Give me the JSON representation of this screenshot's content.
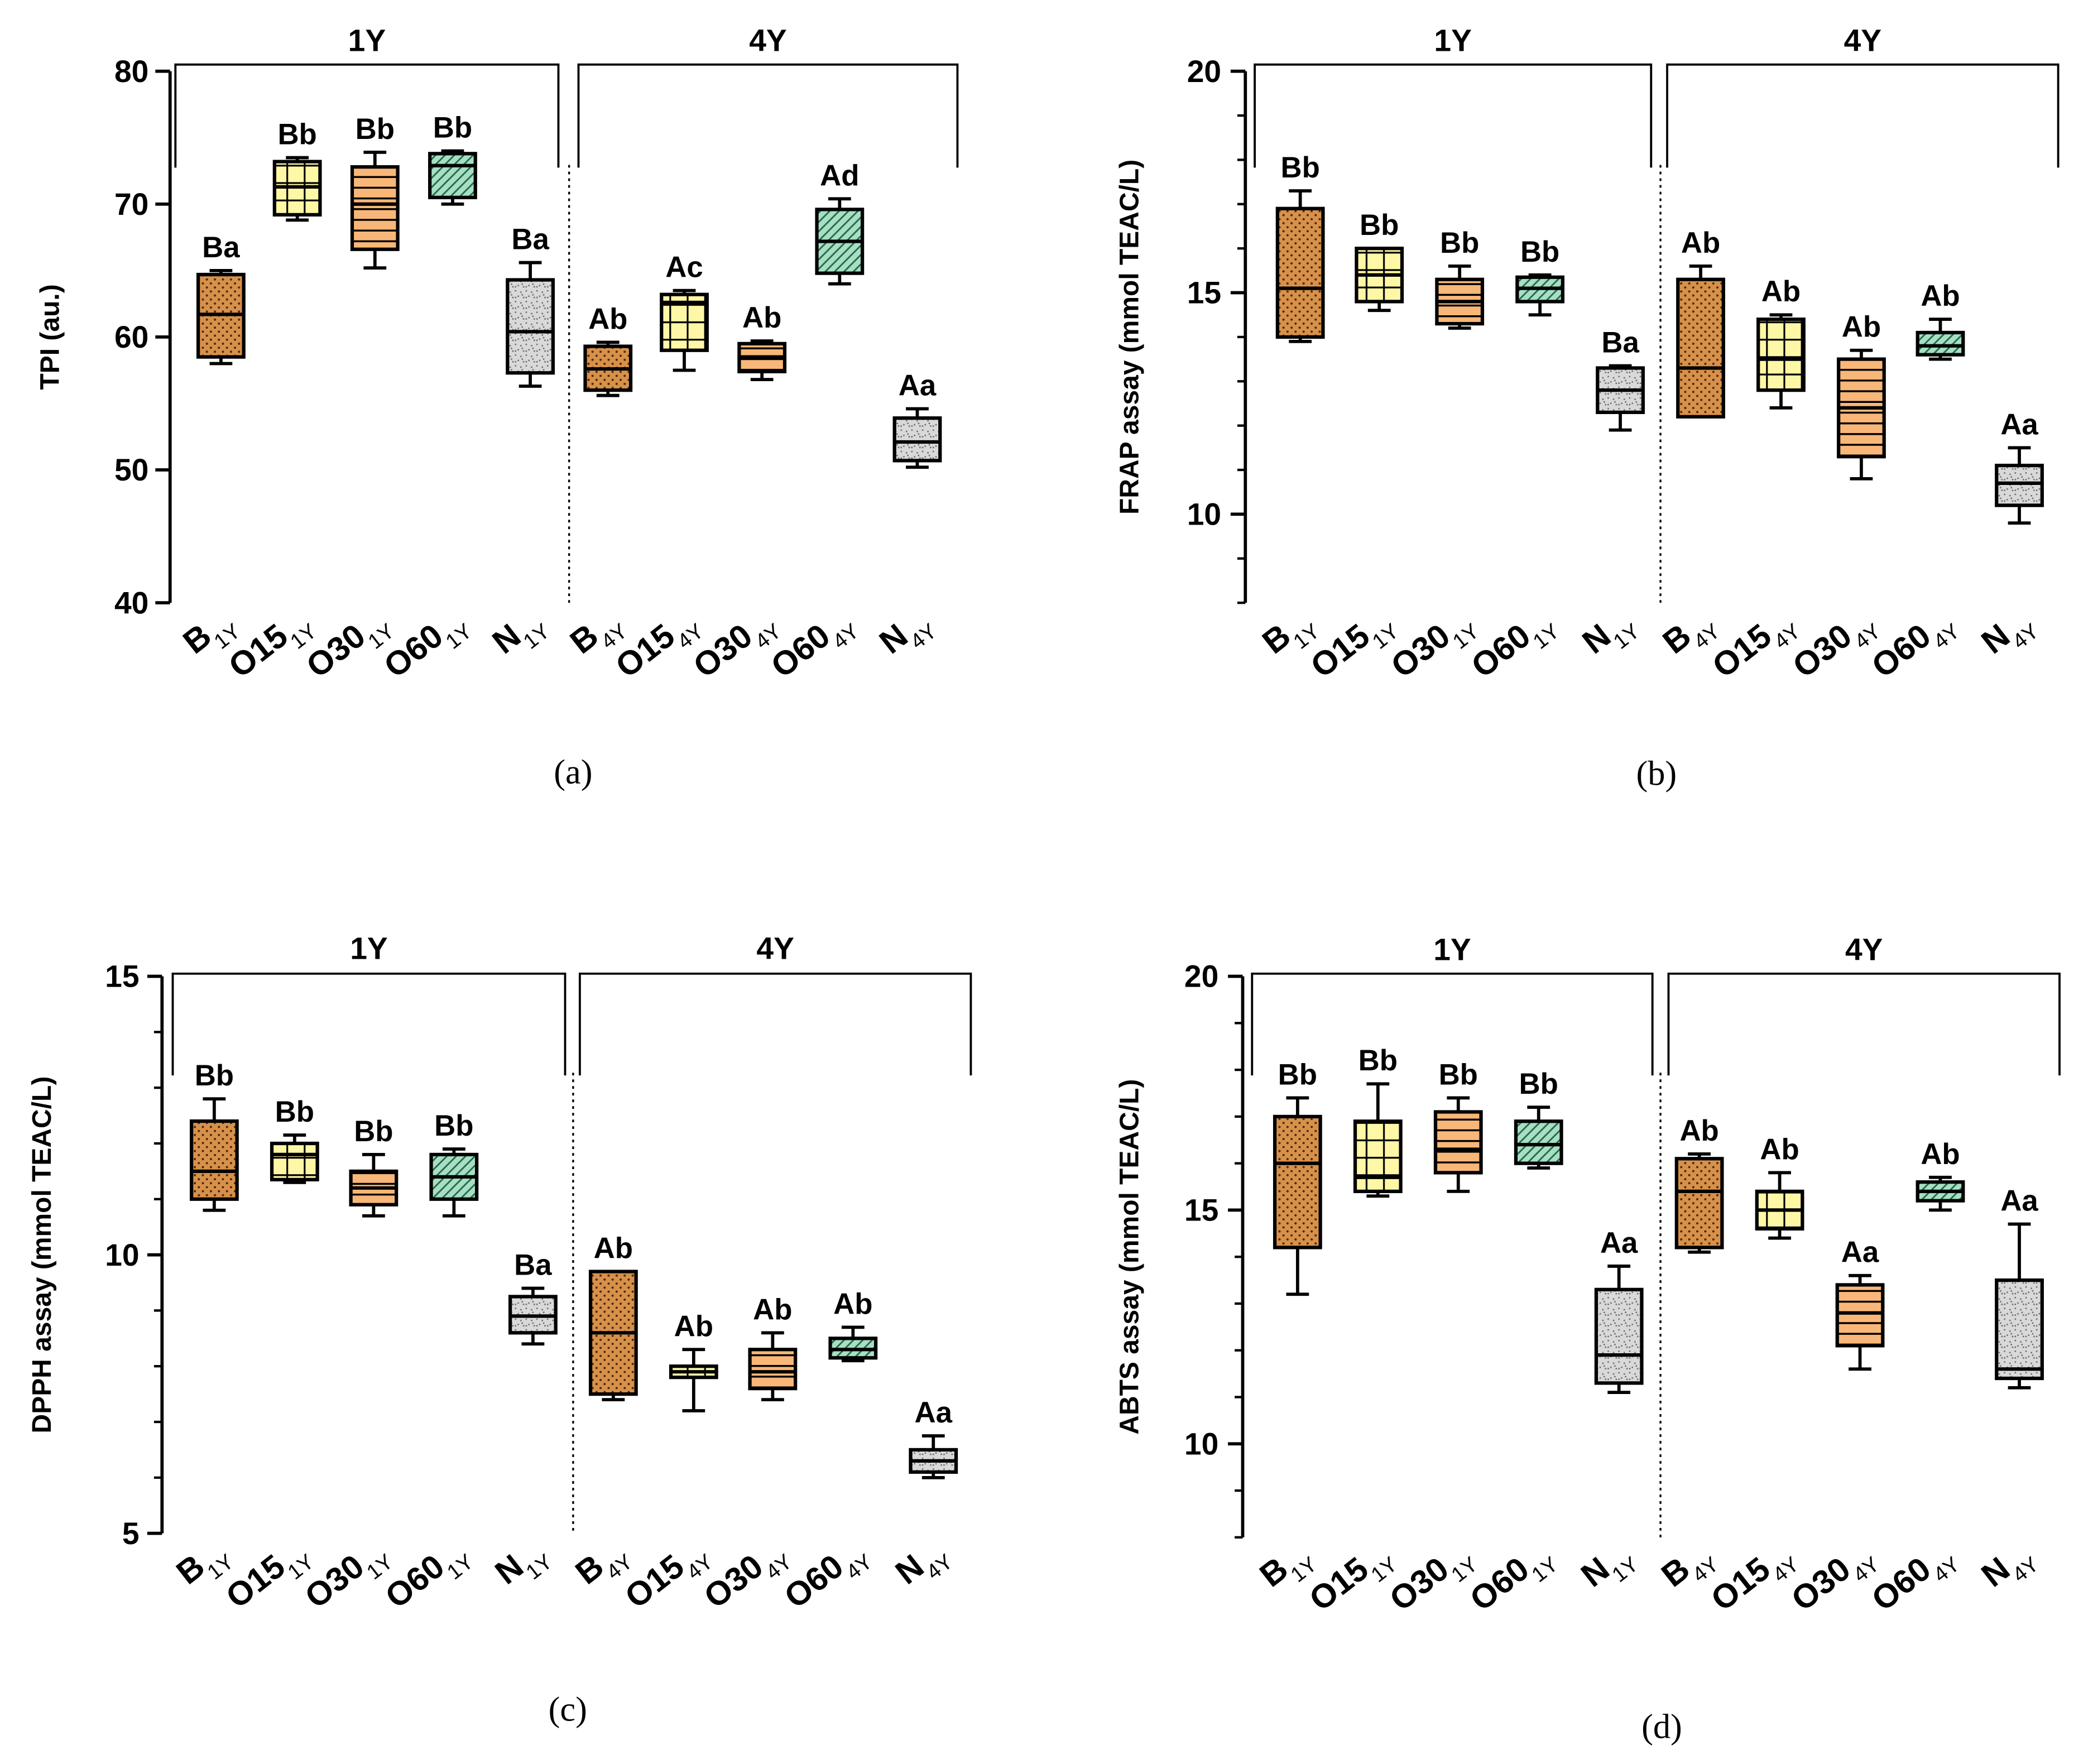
{
  "colors": {
    "B": "#d8914a",
    "O15": "#fdf7a6",
    "O30": "#f8b778",
    "O60": "#a9dec4",
    "N": "#d9d9d9"
  },
  "patterns": {
    "B": "dots",
    "O15": "cross",
    "O30": "hlines",
    "O60": "diag",
    "N": "speckle"
  },
  "chart_data": [
    {
      "type": "box",
      "panel": "(a)",
      "ylabel": "TPI (au.)",
      "ylim": [
        40,
        80
      ],
      "yticks": [
        40,
        50,
        60,
        70,
        80
      ],
      "minor_step": 0,
      "groups": [
        "1Y",
        "4Y"
      ],
      "categories": [
        {
          "base": "B",
          "sub": "1Y"
        },
        {
          "base": "O15",
          "sub": "1Y"
        },
        {
          "base": "O30",
          "sub": "1Y"
        },
        {
          "base": "O60",
          "sub": "1Y"
        },
        {
          "base": "N",
          "sub": "1Y"
        },
        {
          "base": "B",
          "sub": "4Y"
        },
        {
          "base": "O15",
          "sub": "4Y"
        },
        {
          "base": "O30",
          "sub": "4Y"
        },
        {
          "base": "O60",
          "sub": "4Y"
        },
        {
          "base": "N",
          "sub": "4Y"
        }
      ],
      "boxes": [
        {
          "min": 58.0,
          "q1": 58.5,
          "median": 61.7,
          "q3": 64.7,
          "max": 65.0,
          "label": "Ba"
        },
        {
          "min": 68.8,
          "q1": 69.2,
          "median": 71.3,
          "q3": 73.2,
          "max": 73.5,
          "label": "Bb"
        },
        {
          "min": 65.2,
          "q1": 66.6,
          "median": 70.0,
          "q3": 72.8,
          "max": 73.9,
          "label": "Bb"
        },
        {
          "min": 70.0,
          "q1": 70.5,
          "median": 72.9,
          "q3": 73.8,
          "max": 74.0,
          "label": "Bb"
        },
        {
          "min": 56.3,
          "q1": 57.3,
          "median": 60.4,
          "q3": 64.3,
          "max": 65.6,
          "label": "Ba"
        },
        {
          "min": 55.6,
          "q1": 56.0,
          "median": 57.6,
          "q3": 59.3,
          "max": 59.6,
          "label": "Ab"
        },
        {
          "min": 57.5,
          "q1": 59.0,
          "median": 62.6,
          "q3": 63.2,
          "max": 63.5,
          "label": "Ac"
        },
        {
          "min": 56.8,
          "q1": 57.4,
          "median": 58.5,
          "q3": 59.5,
          "max": 59.7,
          "label": "Ab"
        },
        {
          "min": 64.0,
          "q1": 64.8,
          "median": 67.2,
          "q3": 69.6,
          "max": 70.4,
          "label": "Ad"
        },
        {
          "min": 50.2,
          "q1": 50.7,
          "median": 52.1,
          "q3": 53.9,
          "max": 54.6,
          "label": "Aa"
        }
      ]
    },
    {
      "type": "box",
      "panel": "(b)",
      "ylabel": "FRAP assay (mmol TEAC/L)",
      "ylim": [
        8,
        20
      ],
      "yticks": [
        10,
        15,
        20
      ],
      "minor_step": 1,
      "groups": [
        "1Y",
        "4Y"
      ],
      "categories": [
        {
          "base": "B",
          "sub": "1Y"
        },
        {
          "base": "O15",
          "sub": "1Y"
        },
        {
          "base": "O30",
          "sub": "1Y"
        },
        {
          "base": "O60",
          "sub": "1Y"
        },
        {
          "base": "N",
          "sub": "1Y"
        },
        {
          "base": "B",
          "sub": "4Y"
        },
        {
          "base": "O15",
          "sub": "4Y"
        },
        {
          "base": "O30",
          "sub": "4Y"
        },
        {
          "base": "O60",
          "sub": "4Y"
        },
        {
          "base": "N",
          "sub": "4Y"
        }
      ],
      "boxes": [
        {
          "min": 13.9,
          "q1": 14.0,
          "median": 15.1,
          "q3": 16.9,
          "max": 17.3,
          "label": "Bb"
        },
        {
          "min": 14.6,
          "q1": 14.8,
          "median": 15.4,
          "q3": 16.0,
          "max": 16.0,
          "label": "Bb"
        },
        {
          "min": 14.2,
          "q1": 14.3,
          "median": 14.8,
          "q3": 15.3,
          "max": 15.6,
          "label": "Bb"
        },
        {
          "min": 14.5,
          "q1": 14.8,
          "median": 15.1,
          "q3": 15.35,
          "max": 15.4,
          "label": "Bb"
        },
        {
          "min": 11.9,
          "q1": 12.3,
          "median": 12.8,
          "q3": 13.3,
          "max": 13.35,
          "label": "Ba"
        },
        {
          "min": 12.2,
          "q1": 12.2,
          "median": 13.3,
          "q3": 15.3,
          "max": 15.6,
          "label": "Ab"
        },
        {
          "min": 12.4,
          "q1": 12.8,
          "median": 13.5,
          "q3": 14.4,
          "max": 14.5,
          "label": "Ab"
        },
        {
          "min": 10.8,
          "q1": 11.3,
          "median": 12.4,
          "q3": 13.5,
          "max": 13.7,
          "label": "Ab"
        },
        {
          "min": 13.5,
          "q1": 13.6,
          "median": 13.8,
          "q3": 14.1,
          "max": 14.4,
          "label": "Ab"
        },
        {
          "min": 9.8,
          "q1": 10.2,
          "median": 10.7,
          "q3": 11.1,
          "max": 11.5,
          "label": "Aa"
        }
      ]
    },
    {
      "type": "box",
      "panel": "(c)",
      "ylabel": "DPPH assay (mmol TEAC/L)",
      "ylim": [
        5,
        15
      ],
      "yticks": [
        5,
        10,
        15
      ],
      "minor_step": 1,
      "groups": [
        "1Y",
        "4Y"
      ],
      "categories": [
        {
          "base": "B",
          "sub": "1Y"
        },
        {
          "base": "O15",
          "sub": "1Y"
        },
        {
          "base": "O30",
          "sub": "1Y"
        },
        {
          "base": "O60",
          "sub": "1Y"
        },
        {
          "base": "N",
          "sub": "1Y"
        },
        {
          "base": "B",
          "sub": "4Y"
        },
        {
          "base": "O15",
          "sub": "4Y"
        },
        {
          "base": "O30",
          "sub": "4Y"
        },
        {
          "base": "O60",
          "sub": "4Y"
        },
        {
          "base": "N",
          "sub": "4Y"
        }
      ],
      "boxes": [
        {
          "min": 10.8,
          "q1": 11.0,
          "median": 11.5,
          "q3": 12.4,
          "max": 12.8,
          "label": "Bb"
        },
        {
          "min": 11.3,
          "q1": 11.35,
          "median": 11.8,
          "q3": 12.0,
          "max": 12.15,
          "label": "Bb"
        },
        {
          "min": 10.7,
          "q1": 10.9,
          "median": 11.2,
          "q3": 11.5,
          "max": 11.8,
          "label": "Bb"
        },
        {
          "min": 10.7,
          "q1": 11.0,
          "median": 11.4,
          "q3": 11.8,
          "max": 11.9,
          "label": "Bb"
        },
        {
          "min": 8.4,
          "q1": 8.6,
          "median": 8.9,
          "q3": 9.25,
          "max": 9.4,
          "label": "Ba"
        },
        {
          "min": 7.4,
          "q1": 7.5,
          "median": 8.6,
          "q3": 9.7,
          "max": 9.7,
          "label": "Ab"
        },
        {
          "min": 7.2,
          "q1": 7.8,
          "median": 7.9,
          "q3": 8.0,
          "max": 8.3,
          "label": "Ab"
        },
        {
          "min": 7.4,
          "q1": 7.6,
          "median": 7.9,
          "q3": 8.3,
          "max": 8.6,
          "label": "Ab"
        },
        {
          "min": 8.1,
          "q1": 8.15,
          "median": 8.3,
          "q3": 8.5,
          "max": 8.7,
          "label": "Ab"
        },
        {
          "min": 6.0,
          "q1": 6.1,
          "median": 6.3,
          "q3": 6.5,
          "max": 6.75,
          "label": "Aa"
        }
      ]
    },
    {
      "type": "box",
      "panel": "(d)",
      "ylabel": "ABTS  assay (mmol TEAC/L)",
      "ylim": [
        8,
        20
      ],
      "yticks": [
        10,
        15,
        20
      ],
      "minor_step": 1,
      "groups": [
        "1Y",
        "4Y"
      ],
      "categories": [
        {
          "base": "B",
          "sub": "1Y"
        },
        {
          "base": "O15",
          "sub": "1Y"
        },
        {
          "base": "O30",
          "sub": "1Y"
        },
        {
          "base": "O60",
          "sub": "1Y"
        },
        {
          "base": "N",
          "sub": "1Y"
        },
        {
          "base": "B",
          "sub": "4Y"
        },
        {
          "base": "O15",
          "sub": "4Y"
        },
        {
          "base": "O30",
          "sub": "4Y"
        },
        {
          "base": "O60",
          "sub": "4Y"
        },
        {
          "base": "N",
          "sub": "4Y"
        }
      ],
      "boxes": [
        {
          "min": 13.2,
          "q1": 14.2,
          "median": 16.0,
          "q3": 17.0,
          "max": 17.4,
          "label": "Bb"
        },
        {
          "min": 15.3,
          "q1": 15.4,
          "median": 15.7,
          "q3": 16.9,
          "max": 17.7,
          "label": "Bb"
        },
        {
          "min": 15.4,
          "q1": 15.8,
          "median": 16.3,
          "q3": 17.1,
          "max": 17.4,
          "label": "Bb"
        },
        {
          "min": 15.9,
          "q1": 16.0,
          "median": 16.4,
          "q3": 16.9,
          "max": 17.2,
          "label": "Bb"
        },
        {
          "min": 11.1,
          "q1": 11.3,
          "median": 11.9,
          "q3": 13.3,
          "max": 13.8,
          "label": "Aa"
        },
        {
          "min": 14.1,
          "q1": 14.2,
          "median": 15.4,
          "q3": 16.1,
          "max": 16.2,
          "label": "Ab"
        },
        {
          "min": 14.4,
          "q1": 14.6,
          "median": 15.0,
          "q3": 15.4,
          "max": 15.8,
          "label": "Ab"
        },
        {
          "min": 11.6,
          "q1": 12.1,
          "median": 12.8,
          "q3": 13.4,
          "max": 13.6,
          "label": "Aa"
        },
        {
          "min": 15.0,
          "q1": 15.2,
          "median": 15.4,
          "q3": 15.6,
          "max": 15.7,
          "label": "Ab"
        },
        {
          "min": 11.2,
          "q1": 11.4,
          "median": 11.6,
          "q3": 13.5,
          "max": 14.7,
          "label": "Aa"
        }
      ]
    }
  ]
}
